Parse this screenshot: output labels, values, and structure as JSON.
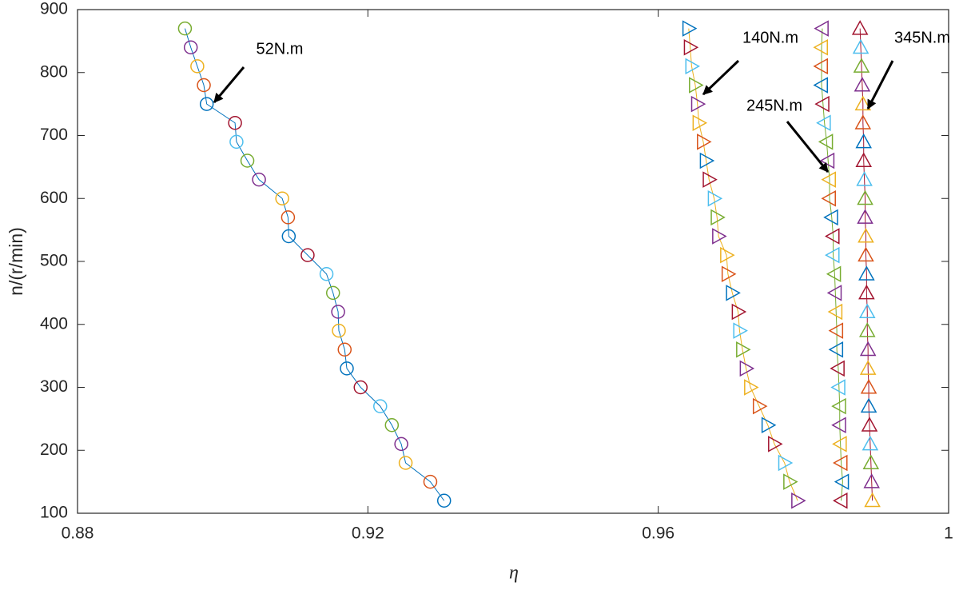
{
  "chart_data": {
    "type": "scatter",
    "x_label": "η",
    "y_label": "n/(r/min)",
    "xlim": [
      0.88,
      1
    ],
    "xticks": [
      0.88,
      0.92,
      0.96,
      1
    ],
    "ylim": [
      100,
      900
    ],
    "yticks": [
      100,
      200,
      300,
      400,
      500,
      600,
      700,
      800,
      900
    ],
    "palette": [
      "#0072BD",
      "#D95319",
      "#EDB120",
      "#7E2F8E",
      "#77AC30",
      "#4DBEEE",
      "#A2142F"
    ],
    "y": [
      120,
      150,
      180,
      210,
      240,
      270,
      300,
      330,
      360,
      390,
      420,
      450,
      480,
      510,
      540,
      570,
      600,
      630,
      660,
      690,
      720,
      750,
      780,
      810,
      840,
      870
    ],
    "series": [
      {
        "name": "52N.m",
        "marker": "circle",
        "x": [
          0.9305,
          0.9286,
          0.9252,
          0.9246,
          0.9233,
          0.9217,
          0.919,
          0.9171,
          0.9168,
          0.916,
          0.9159,
          0.9152,
          0.9143,
          0.9117,
          0.9091,
          0.909,
          0.9082,
          0.905,
          0.9034,
          0.9019,
          0.9017,
          0.8978,
          0.8974,
          0.8965,
          0.8956,
          0.8948
        ]
      },
      {
        "name": "140N.m",
        "marker": "triangle-right",
        "x": [
          0.9792,
          0.9781,
          0.9774,
          0.976,
          0.9751,
          0.9739,
          0.9727,
          0.9721,
          0.9716,
          0.9712,
          0.971,
          0.9702,
          0.9696,
          0.9694,
          0.9683,
          0.9681,
          0.9677,
          0.967,
          0.9666,
          0.9662,
          0.9656,
          0.9654,
          0.9651,
          0.9646,
          0.9644,
          0.9642
        ]
      },
      {
        "name": "245N.m",
        "marker": "triangle-left",
        "x": [
          0.9852,
          0.9854,
          0.9852,
          0.9851,
          0.985,
          0.985,
          0.9849,
          0.9848,
          0.9846,
          0.9846,
          0.9845,
          0.9844,
          0.9843,
          0.9841,
          0.9841,
          0.9839,
          0.9836,
          0.9836,
          0.9834,
          0.9832,
          0.9829,
          0.9827,
          0.9825,
          0.9825,
          0.9825,
          0.9826
        ]
      },
      {
        "name": "345N.m",
        "marker": "triangle-up",
        "x": [
          0.9895,
          0.9894,
          0.9893,
          0.9892,
          0.9891,
          0.989,
          0.989,
          0.9889,
          0.9889,
          0.9888,
          0.9888,
          0.9887,
          0.9887,
          0.9886,
          0.9886,
          0.9885,
          0.9885,
          0.9884,
          0.9883,
          0.9883,
          0.9882,
          0.9882,
          0.9881,
          0.988,
          0.9879,
          0.9878
        ]
      }
    ]
  }
}
